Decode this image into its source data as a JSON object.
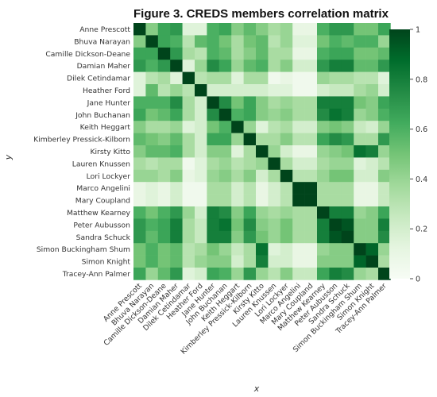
{
  "chart_data": {
    "type": "heatmap",
    "title": "Figure 3. CREDS members correlation matrix",
    "xlabel": "x",
    "ylabel": "y",
    "members": [
      "Anne Prescott",
      "Bhuva Narayan",
      "Camille Dickson-Deane",
      "Damian Maher",
      "Dilek Cetindamar",
      "Heather Ford",
      "Jane Hunter",
      "John Buchanan",
      "Keith Heggart",
      "Kimberley Pressick-Kilborn",
      "Kirsty Kitto",
      "Lauren Knussen",
      "Lori Lockyer",
      "Marco Angelini",
      "Mary Coupland",
      "Matthew Kearney",
      "Peter Aubusson",
      "Sandra Schuck",
      "Simon Buckingham Shum",
      "Simon Knight",
      "Tracey-Ann Palmer"
    ],
    "values": [
      [
        1.0,
        0.45,
        0.65,
        0.7,
        0.15,
        0.15,
        0.6,
        0.65,
        0.45,
        0.55,
        0.45,
        0.35,
        0.4,
        0.1,
        0.1,
        0.6,
        0.7,
        0.7,
        0.5,
        0.5,
        0.65
      ],
      [
        0.45,
        1.0,
        0.65,
        0.6,
        0.3,
        0.55,
        0.6,
        0.5,
        0.35,
        0.5,
        0.55,
        0.3,
        0.4,
        0.15,
        0.15,
        0.5,
        0.6,
        0.55,
        0.6,
        0.6,
        0.4
      ],
      [
        0.65,
        0.65,
        1.0,
        0.7,
        0.35,
        0.3,
        0.6,
        0.55,
        0.35,
        0.45,
        0.55,
        0.35,
        0.35,
        0.1,
        0.1,
        0.6,
        0.65,
        0.65,
        0.5,
        0.5,
        0.55
      ],
      [
        0.7,
        0.6,
        0.7,
        1.0,
        0.15,
        0.4,
        0.75,
        0.65,
        0.4,
        0.55,
        0.6,
        0.35,
        0.45,
        0.2,
        0.2,
        0.7,
        0.8,
        0.8,
        0.55,
        0.55,
        0.7
      ],
      [
        0.15,
        0.3,
        0.35,
        0.15,
        1.0,
        0.3,
        0.35,
        0.35,
        0.15,
        0.35,
        0.35,
        0.05,
        0.1,
        0.05,
        0.05,
        0.4,
        0.35,
        0.35,
        0.3,
        0.3,
        0.15
      ],
      [
        0.15,
        0.55,
        0.3,
        0.4,
        0.3,
        1.0,
        0.2,
        0.2,
        0.2,
        0.2,
        0.2,
        0.15,
        0.15,
        0.05,
        0.05,
        0.2,
        0.25,
        0.25,
        0.35,
        0.4,
        0.2
      ],
      [
        0.6,
        0.6,
        0.6,
        0.75,
        0.35,
        0.2,
        1.0,
        0.75,
        0.5,
        0.65,
        0.45,
        0.35,
        0.4,
        0.35,
        0.35,
        0.8,
        0.8,
        0.8,
        0.5,
        0.45,
        0.65
      ],
      [
        0.65,
        0.5,
        0.55,
        0.65,
        0.35,
        0.2,
        0.75,
        1.0,
        0.6,
        0.65,
        0.45,
        0.4,
        0.45,
        0.35,
        0.35,
        0.75,
        0.85,
        0.8,
        0.4,
        0.45,
        0.6
      ],
      [
        0.45,
        0.35,
        0.35,
        0.4,
        0.15,
        0.2,
        0.5,
        0.6,
        1.0,
        0.4,
        0.15,
        0.3,
        0.35,
        0.2,
        0.2,
        0.45,
        0.5,
        0.45,
        0.25,
        0.2,
        0.4
      ],
      [
        0.55,
        0.5,
        0.45,
        0.55,
        0.35,
        0.2,
        0.65,
        0.65,
        0.4,
        1.0,
        0.35,
        0.35,
        0.45,
        0.3,
        0.3,
        0.65,
        0.75,
        0.7,
        0.35,
        0.35,
        0.7
      ],
      [
        0.45,
        0.55,
        0.55,
        0.6,
        0.35,
        0.2,
        0.45,
        0.45,
        0.15,
        0.35,
        1.0,
        0.4,
        0.2,
        0.1,
        0.1,
        0.4,
        0.45,
        0.5,
        0.85,
        0.8,
        0.4
      ],
      [
        0.35,
        0.3,
        0.35,
        0.35,
        0.05,
        0.15,
        0.35,
        0.4,
        0.3,
        0.35,
        0.4,
        1.0,
        0.35,
        0.2,
        0.2,
        0.35,
        0.4,
        0.4,
        0.15,
        0.2,
        0.3
      ],
      [
        0.4,
        0.4,
        0.35,
        0.45,
        0.1,
        0.15,
        0.4,
        0.45,
        0.35,
        0.45,
        0.2,
        0.35,
        1.0,
        0.3,
        0.3,
        0.4,
        0.5,
        0.5,
        0.2,
        0.2,
        0.45
      ],
      [
        0.1,
        0.15,
        0.1,
        0.2,
        0.05,
        0.05,
        0.35,
        0.35,
        0.2,
        0.3,
        0.1,
        0.2,
        0.3,
        1.0,
        1.0,
        0.35,
        0.35,
        0.35,
        0.1,
        0.1,
        0.25
      ],
      [
        0.1,
        0.15,
        0.1,
        0.2,
        0.05,
        0.05,
        0.35,
        0.35,
        0.2,
        0.3,
        0.1,
        0.2,
        0.3,
        1.0,
        1.0,
        0.35,
        0.35,
        0.35,
        0.1,
        0.1,
        0.25
      ],
      [
        0.6,
        0.5,
        0.6,
        0.7,
        0.4,
        0.2,
        0.8,
        0.75,
        0.45,
        0.65,
        0.4,
        0.35,
        0.4,
        0.35,
        0.35,
        1.0,
        0.8,
        0.8,
        0.4,
        0.45,
        0.65
      ],
      [
        0.7,
        0.6,
        0.65,
        0.8,
        0.35,
        0.25,
        0.8,
        0.85,
        0.5,
        0.75,
        0.45,
        0.4,
        0.5,
        0.35,
        0.35,
        0.8,
        1.0,
        0.95,
        0.45,
        0.45,
        0.8
      ],
      [
        0.7,
        0.55,
        0.65,
        0.8,
        0.35,
        0.25,
        0.8,
        0.8,
        0.45,
        0.7,
        0.5,
        0.4,
        0.5,
        0.35,
        0.35,
        0.8,
        0.95,
        1.0,
        0.45,
        0.45,
        0.75
      ],
      [
        0.5,
        0.6,
        0.5,
        0.55,
        0.3,
        0.35,
        0.5,
        0.4,
        0.25,
        0.35,
        0.85,
        0.15,
        0.2,
        0.1,
        0.1,
        0.4,
        0.45,
        0.45,
        1.0,
        0.9,
        0.4
      ],
      [
        0.5,
        0.6,
        0.5,
        0.55,
        0.3,
        0.4,
        0.45,
        0.45,
        0.2,
        0.35,
        0.8,
        0.2,
        0.2,
        0.1,
        0.1,
        0.45,
        0.45,
        0.45,
        0.9,
        1.0,
        0.35
      ],
      [
        0.65,
        0.4,
        0.55,
        0.7,
        0.15,
        0.2,
        0.65,
        0.6,
        0.4,
        0.7,
        0.4,
        0.3,
        0.45,
        0.25,
        0.25,
        0.65,
        0.8,
        0.75,
        0.4,
        0.35,
        1.0
      ]
    ],
    "colorscale": "Greens",
    "zmin": 0,
    "zmax": 1,
    "colorbar_ticks": [
      "0",
      "0.2",
      "0.4",
      "0.6",
      "0.8",
      "1"
    ],
    "grid": false,
    "legend": "colorbar-right"
  }
}
